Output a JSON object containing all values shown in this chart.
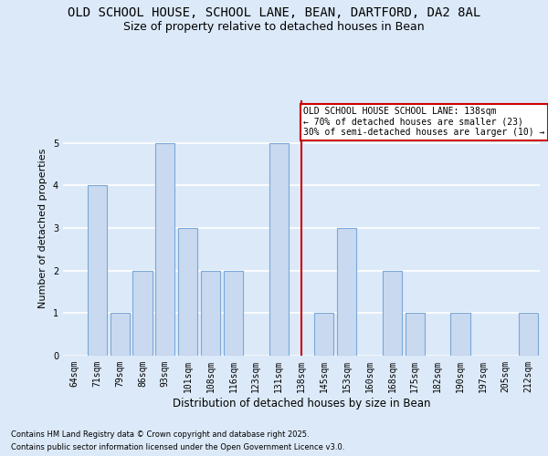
{
  "title": "OLD SCHOOL HOUSE, SCHOOL LANE, BEAN, DARTFORD, DA2 8AL",
  "subtitle": "Size of property relative to detached houses in Bean",
  "xlabel": "Distribution of detached houses by size in Bean",
  "ylabel": "Number of detached properties",
  "categories": [
    "64sqm",
    "71sqm",
    "79sqm",
    "86sqm",
    "93sqm",
    "101sqm",
    "108sqm",
    "116sqm",
    "123sqm",
    "131sqm",
    "138sqm",
    "145sqm",
    "153sqm",
    "160sqm",
    "168sqm",
    "175sqm",
    "182sqm",
    "190sqm",
    "197sqm",
    "205sqm",
    "212sqm"
  ],
  "values": [
    0,
    4,
    1,
    2,
    5,
    3,
    2,
    2,
    0,
    5,
    0,
    1,
    3,
    0,
    2,
    1,
    0,
    1,
    0,
    0,
    1
  ],
  "bar_color": "#c9d9f0",
  "bar_edgecolor": "#7aa8d8",
  "bar_linewidth": 0.8,
  "vline_index": 10,
  "vline_color": "#cc0000",
  "annotation_title": "OLD SCHOOL HOUSE SCHOOL LANE: 138sqm",
  "annotation_line2": "← 70% of detached houses are smaller (23)",
  "annotation_line3": "30% of semi-detached houses are larger (10) →",
  "annotation_box_edgecolor": "#cc0000",
  "annotation_box_facecolor": "#ffffff",
  "ylim": [
    0,
    6
  ],
  "yticks": [
    0,
    1,
    2,
    3,
    4,
    5,
    6
  ],
  "background_color": "#dce9f8",
  "axes_facecolor": "#dce9f8",
  "grid_color": "#ffffff",
  "title_fontsize": 10,
  "subtitle_fontsize": 9,
  "xlabel_fontsize": 8.5,
  "ylabel_fontsize": 8,
  "tick_fontsize": 7,
  "annot_fontsize": 7,
  "footer_fontsize": 6,
  "footer_line1": "Contains HM Land Registry data © Crown copyright and database right 2025.",
  "footer_line2": "Contains public sector information licensed under the Open Government Licence v3.0."
}
